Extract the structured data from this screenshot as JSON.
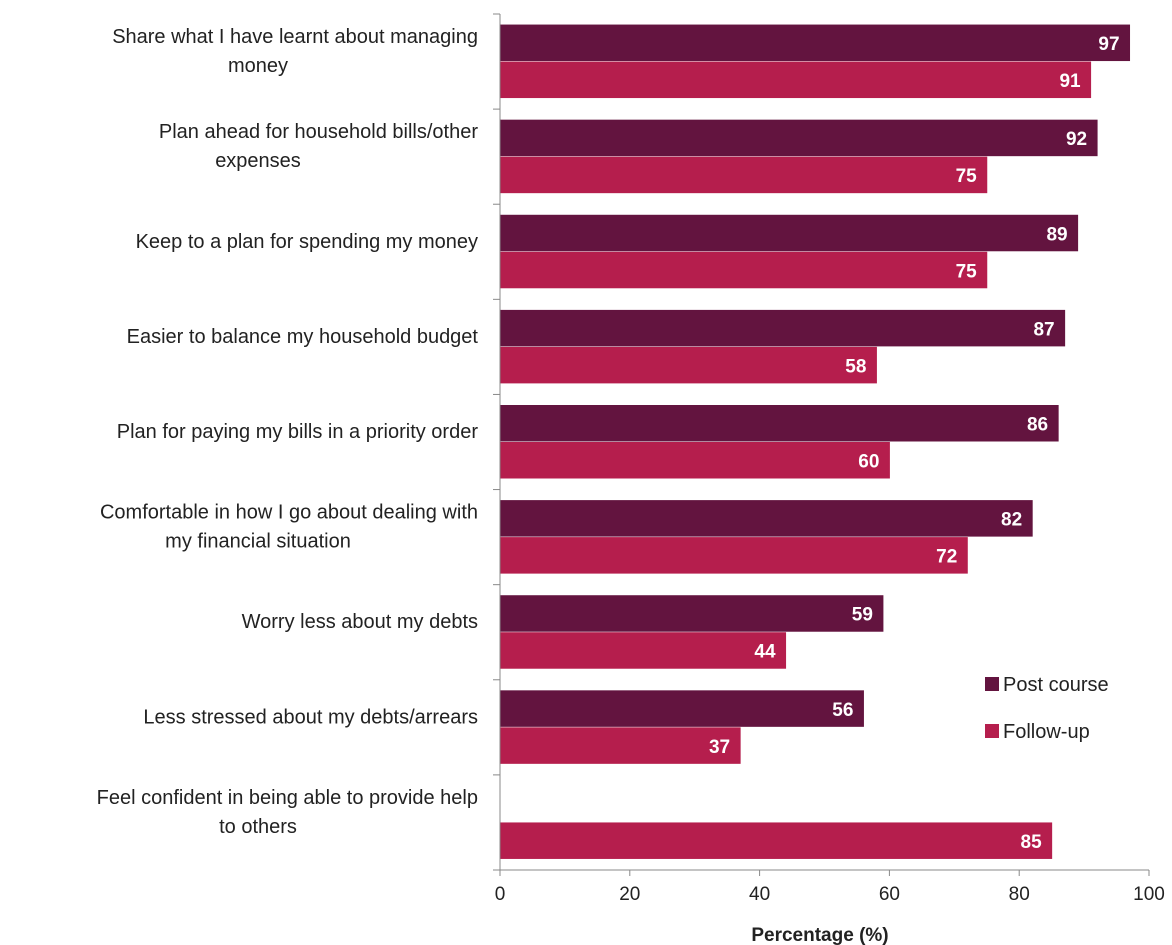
{
  "chart_data": {
    "type": "bar",
    "orientation": "horizontal",
    "categories": [
      [
        "Share what I have learnt about managing",
        "money"
      ],
      [
        "Plan ahead for household bills/other",
        "expenses"
      ],
      [
        "Keep to a plan for spending my money"
      ],
      [
        "Easier to balance my household budget"
      ],
      [
        "Plan for paying my bills in a priority order"
      ],
      [
        "Comfortable in how I go about dealing with",
        "my financial situation"
      ],
      [
        "Worry less about my debts"
      ],
      [
        "Less stressed about my debts/arrears"
      ],
      [
        "Feel confident in being able to provide help",
        "to others"
      ]
    ],
    "series": [
      {
        "name": "Post course",
        "color": "#63143f",
        "values": [
          97,
          92,
          89,
          87,
          86,
          82,
          59,
          56,
          null
        ]
      },
      {
        "name": "Follow-up",
        "color": "#b51e4d",
        "values": [
          91,
          75,
          75,
          58,
          60,
          72,
          44,
          37,
          85
        ]
      }
    ],
    "xlabel": "Percentage (%)",
    "xlim": [
      0,
      100
    ],
    "xticks": [
      0,
      20,
      40,
      60,
      80,
      100
    ],
    "grid": false,
    "legend_position": "right"
  }
}
